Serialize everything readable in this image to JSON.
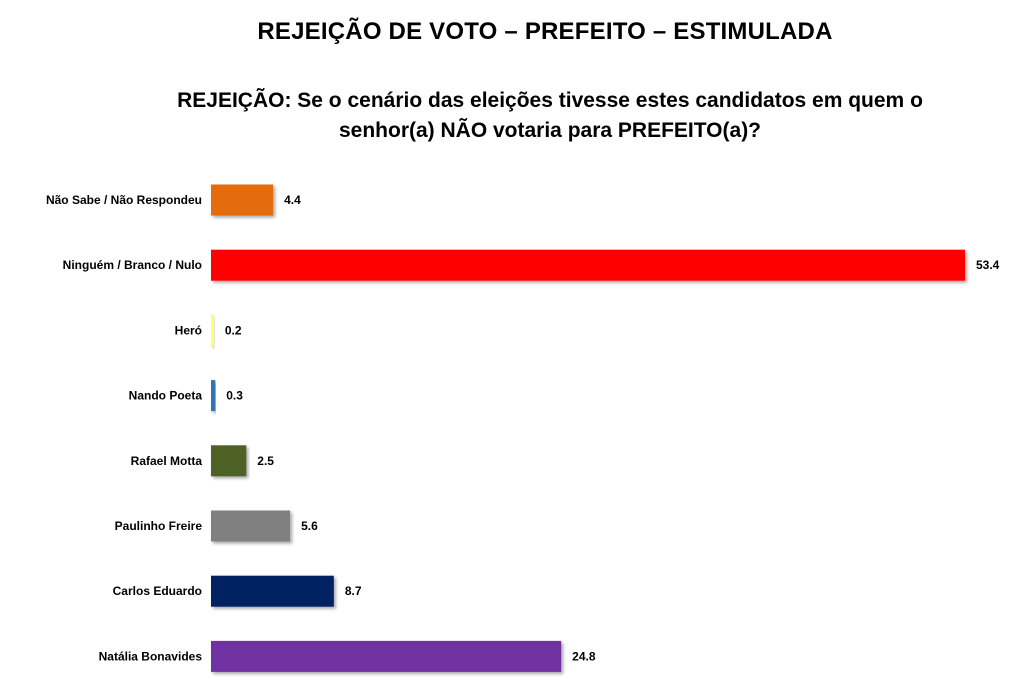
{
  "chart_data": {
    "type": "bar",
    "orientation": "horizontal",
    "title": "REJEIÇÃO DE VOTO – PREFEITO – ESTIMULADA",
    "subtitle": "REJEIÇÃO: Se o cenário das eleições tivesse estes candidatos em quem o senhor(a) NÃO votaria para PREFEITO(a)?",
    "xlabel": "",
    "ylabel": "",
    "xlim": [
      0,
      53.4
    ],
    "grid": false,
    "legend": "none",
    "categories": [
      "Não Sabe / Não Respondeu",
      "Ninguém / Branco / Nulo",
      "Heró",
      "Nando Poeta",
      "Rafael Motta",
      "Paulinho Freire",
      "Carlos Eduardo",
      "Natália Bonavides"
    ],
    "values": [
      4.4,
      53.4,
      0.2,
      0.3,
      2.5,
      5.6,
      8.7,
      24.8
    ],
    "value_labels": [
      "4.4",
      "53.4",
      "0.2",
      "0.3",
      "2.5",
      "5.6",
      "8.7",
      "24.8"
    ],
    "colors": [
      "#E46C0A",
      "#FF0000",
      "#FFFF66",
      "#2E75B6",
      "#4F6228",
      "#808080",
      "#002060",
      "#7030A0"
    ]
  }
}
